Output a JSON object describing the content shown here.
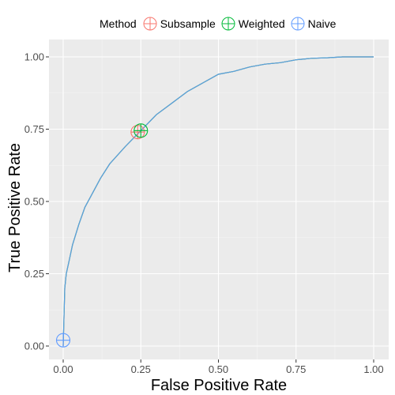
{
  "chart_data": {
    "type": "line",
    "xlabel": "False Positive Rate",
    "ylabel": "True Positive Rate",
    "xlim": [
      0,
      1
    ],
    "ylim": [
      0,
      1
    ],
    "x_ticks": [
      0,
      0.25,
      0.5,
      0.75,
      1
    ],
    "y_ticks": [
      0,
      0.25,
      0.5,
      0.75,
      1
    ],
    "x_tick_labels": [
      "0.00",
      "0.25",
      "0.50",
      "0.75",
      "1.00"
    ],
    "y_tick_labels": [
      "0.00",
      "0.25",
      "0.50",
      "0.75",
      "1.00"
    ],
    "legend_title": "Method",
    "legend_position": "top",
    "grid": true,
    "series": [
      {
        "name": "Subsample",
        "color": "#F8766D",
        "x": [
          0,
          0.005,
          0.01,
          0.02,
          0.03,
          0.05,
          0.07,
          0.09,
          0.12,
          0.15,
          0.2,
          0.25,
          0.3,
          0.35,
          0.4,
          0.45,
          0.5,
          0.55,
          0.6,
          0.65,
          0.7,
          0.75,
          0.8,
          0.85,
          0.9,
          0.95,
          1
        ],
        "y": [
          0,
          0.2,
          0.25,
          0.3,
          0.35,
          0.42,
          0.48,
          0.52,
          0.58,
          0.63,
          0.69,
          0.745,
          0.8,
          0.84,
          0.88,
          0.91,
          0.94,
          0.95,
          0.965,
          0.975,
          0.98,
          0.99,
          0.995,
          0.997,
          1,
          1,
          1
        ],
        "operating_point": [
          0.24,
          0.74
        ]
      },
      {
        "name": "Weighted",
        "color": "#00BA38",
        "x": [
          0,
          0.005,
          0.01,
          0.02,
          0.03,
          0.05,
          0.07,
          0.09,
          0.12,
          0.15,
          0.2,
          0.25,
          0.3,
          0.35,
          0.4,
          0.45,
          0.5,
          0.55,
          0.6,
          0.65,
          0.7,
          0.75,
          0.8,
          0.85,
          0.9,
          0.95,
          1
        ],
        "y": [
          0,
          0.2,
          0.25,
          0.3,
          0.35,
          0.42,
          0.48,
          0.52,
          0.58,
          0.63,
          0.69,
          0.745,
          0.8,
          0.84,
          0.88,
          0.91,
          0.94,
          0.95,
          0.965,
          0.975,
          0.98,
          0.99,
          0.995,
          0.997,
          1,
          1,
          1
        ],
        "operating_point": [
          0.25,
          0.745
        ]
      },
      {
        "name": "Naive",
        "color": "#619CFF",
        "x": [
          0,
          0.005,
          0.01,
          0.02,
          0.03,
          0.05,
          0.07,
          0.09,
          0.12,
          0.15,
          0.2,
          0.25,
          0.3,
          0.35,
          0.4,
          0.45,
          0.5,
          0.55,
          0.6,
          0.65,
          0.7,
          0.75,
          0.8,
          0.85,
          0.9,
          0.95,
          1
        ],
        "y": [
          0,
          0.2,
          0.25,
          0.3,
          0.35,
          0.42,
          0.48,
          0.52,
          0.58,
          0.63,
          0.69,
          0.745,
          0.8,
          0.84,
          0.88,
          0.91,
          0.94,
          0.95,
          0.965,
          0.975,
          0.98,
          0.99,
          0.995,
          0.997,
          1,
          1,
          1
        ],
        "operating_point": [
          0,
          0.02
        ]
      }
    ]
  }
}
